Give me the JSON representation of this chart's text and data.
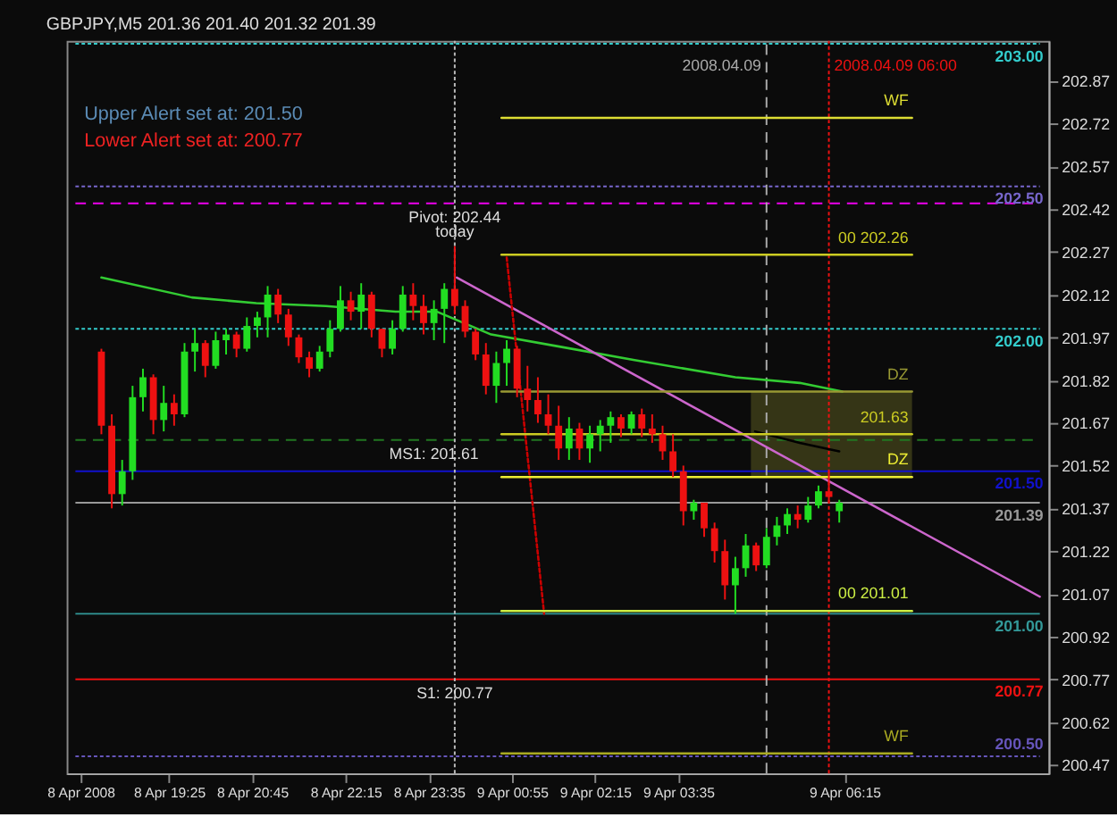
{
  "chart_data": {
    "type": "candlestick",
    "title": "GBPJPY,M5  201.36 201.40 201.32 201.39",
    "x": [
      "2008-04-08T18:20",
      "2008-04-08T18:30",
      "2008-04-08T18:40",
      "2008-04-08T18:50",
      "2008-04-08T19:00",
      "2008-04-08T19:10",
      "2008-04-08T19:20",
      "2008-04-08T19:30",
      "2008-04-08T19:40",
      "2008-04-08T19:50",
      "2008-04-08T20:00",
      "2008-04-08T20:10",
      "2008-04-08T20:20",
      "2008-04-08T20:30",
      "2008-04-08T20:40",
      "2008-04-08T20:50",
      "2008-04-08T21:00",
      "2008-04-08T21:10",
      "2008-04-08T21:20",
      "2008-04-08T21:30",
      "2008-04-08T21:40",
      "2008-04-08T21:50",
      "2008-04-08T22:00",
      "2008-04-08T22:10",
      "2008-04-08T22:20",
      "2008-04-08T22:30",
      "2008-04-08T22:40",
      "2008-04-08T22:50",
      "2008-04-08T23:00",
      "2008-04-08T23:10",
      "2008-04-08T23:20",
      "2008-04-08T23:30",
      "2008-04-08T23:40",
      "2008-04-08T23:50",
      "2008-04-09T00:00",
      "2008-04-09T00:10",
      "2008-04-09T00:20",
      "2008-04-09T00:30",
      "2008-04-09T00:40",
      "2008-04-09T00:50",
      "2008-04-09T01:00",
      "2008-04-09T01:10",
      "2008-04-09T01:20",
      "2008-04-09T01:30",
      "2008-04-09T01:40",
      "2008-04-09T01:50",
      "2008-04-09T02:00",
      "2008-04-09T02:10",
      "2008-04-09T02:20",
      "2008-04-09T02:30",
      "2008-04-09T02:40",
      "2008-04-09T02:50",
      "2008-04-09T03:00",
      "2008-04-09T03:10",
      "2008-04-09T03:20",
      "2008-04-09T03:30",
      "2008-04-09T03:40",
      "2008-04-09T03:50",
      "2008-04-09T04:00",
      "2008-04-09T04:10",
      "2008-04-09T04:20",
      "2008-04-09T04:30",
      "2008-04-09T04:40",
      "2008-04-09T04:50",
      "2008-04-09T05:00",
      "2008-04-09T05:10",
      "2008-04-09T05:20",
      "2008-04-09T05:30",
      "2008-04-09T05:40",
      "2008-04-09T05:50",
      "2008-04-09T06:00",
      "2008-04-09T06:10"
    ],
    "ohlc": [
      [
        201.92,
        201.93,
        201.63,
        201.66
      ],
      [
        201.66,
        201.7,
        201.37,
        201.42
      ],
      [
        201.42,
        201.54,
        201.38,
        201.5
      ],
      [
        201.5,
        201.8,
        201.47,
        201.76
      ],
      [
        201.76,
        201.86,
        201.71,
        201.83
      ],
      [
        201.83,
        201.84,
        201.63,
        201.68
      ],
      [
        201.68,
        201.8,
        201.64,
        201.74
      ],
      [
        201.74,
        201.77,
        201.66,
        201.7
      ],
      [
        201.7,
        201.95,
        201.69,
        201.92
      ],
      [
        201.92,
        202.0,
        201.85,
        201.95
      ],
      [
        201.95,
        201.96,
        201.83,
        201.87
      ],
      [
        201.87,
        201.99,
        201.86,
        201.96
      ],
      [
        201.96,
        202.0,
        201.91,
        201.98
      ],
      [
        201.98,
        201.99,
        201.9,
        201.93
      ],
      [
        201.93,
        202.04,
        201.92,
        202.01
      ],
      [
        202.01,
        202.06,
        201.97,
        202.04
      ],
      [
        202.04,
        202.15,
        201.97,
        202.12
      ],
      [
        202.12,
        202.14,
        202.02,
        202.05
      ],
      [
        202.05,
        202.07,
        201.94,
        201.97
      ],
      [
        201.97,
        201.98,
        201.88,
        201.9
      ],
      [
        201.9,
        201.92,
        201.83,
        201.86
      ],
      [
        201.86,
        201.94,
        201.85,
        201.92
      ],
      [
        201.92,
        202.03,
        201.9,
        202.0
      ],
      [
        202.0,
        202.15,
        201.99,
        202.1
      ],
      [
        202.1,
        202.13,
        202.03,
        202.06
      ],
      [
        202.06,
        202.16,
        202.0,
        202.12
      ],
      [
        202.12,
        202.13,
        201.97,
        202.0
      ],
      [
        202.0,
        202.0,
        201.9,
        201.93
      ],
      [
        201.93,
        202.03,
        201.91,
        202.0
      ],
      [
        202.0,
        202.15,
        201.99,
        202.12
      ],
      [
        202.12,
        202.16,
        202.03,
        202.08
      ],
      [
        202.08,
        202.12,
        201.98,
        202.02
      ],
      [
        202.02,
        202.1,
        201.96,
        202.07
      ],
      [
        202.07,
        202.16,
        201.95,
        202.14
      ],
      [
        202.14,
        202.29,
        202.05,
        202.08
      ],
      [
        202.08,
        202.1,
        201.97,
        201.99
      ],
      [
        201.99,
        202.0,
        201.89,
        201.91
      ],
      [
        201.91,
        201.95,
        201.77,
        201.8
      ],
      [
        201.8,
        201.92,
        201.74,
        201.88
      ],
      [
        201.88,
        201.96,
        201.8,
        201.93
      ],
      [
        201.93,
        201.94,
        201.76,
        201.79
      ],
      [
        201.79,
        201.87,
        201.71,
        201.75
      ],
      [
        201.75,
        201.83,
        201.67,
        201.7
      ],
      [
        201.7,
        201.77,
        201.63,
        201.66
      ],
      [
        201.66,
        201.73,
        201.54,
        201.58
      ],
      [
        201.58,
        201.69,
        201.54,
        201.65
      ],
      [
        201.65,
        201.67,
        201.54,
        201.58
      ],
      [
        201.58,
        201.66,
        201.53,
        201.63
      ],
      [
        201.63,
        201.68,
        201.57,
        201.66
      ],
      [
        201.66,
        201.71,
        201.6,
        201.69
      ],
      [
        201.69,
        201.7,
        201.62,
        201.65
      ],
      [
        201.65,
        201.71,
        201.63,
        201.7
      ],
      [
        201.7,
        201.72,
        201.62,
        201.65
      ],
      [
        201.65,
        201.7,
        201.6,
        201.63
      ],
      [
        201.63,
        201.66,
        201.54,
        201.57
      ],
      [
        201.57,
        201.63,
        201.48,
        201.5
      ],
      [
        201.5,
        201.52,
        201.31,
        201.36
      ],
      [
        201.36,
        201.4,
        201.33,
        201.39
      ],
      [
        201.39,
        201.39,
        201.27,
        201.3
      ],
      [
        201.3,
        201.32,
        201.18,
        201.22
      ],
      [
        201.22,
        201.26,
        201.05,
        201.1
      ],
      [
        201.1,
        201.2,
        201.0,
        201.16
      ],
      [
        201.16,
        201.28,
        201.13,
        201.24
      ],
      [
        201.24,
        201.25,
        201.15,
        201.17
      ],
      [
        201.17,
        201.3,
        201.16,
        201.27
      ],
      [
        201.27,
        201.34,
        201.24,
        201.31
      ],
      [
        201.31,
        201.37,
        201.28,
        201.35
      ],
      [
        201.35,
        201.38,
        201.3,
        201.33
      ],
      [
        201.33,
        201.41,
        201.32,
        201.38
      ],
      [
        201.38,
        201.45,
        201.37,
        201.43
      ],
      [
        201.43,
        201.5,
        201.39,
        201.41
      ],
      [
        201.36,
        201.4,
        201.32,
        201.39
      ]
    ],
    "colors": [
      "#ee1111",
      "#ee1111",
      "#22dd22",
      "#22dd22",
      "#22dd22",
      "#ee1111",
      "#22dd22",
      "#ee1111",
      "#22dd22",
      "#22dd22",
      "#ee1111",
      "#22dd22",
      "#22dd22",
      "#ee1111",
      "#22dd22",
      "#22dd22",
      "#22dd22",
      "#ee1111",
      "#ee1111",
      "#ee1111",
      "#ee1111",
      "#22dd22",
      "#22dd22",
      "#22dd22",
      "#ee1111",
      "#22dd22",
      "#ee1111",
      "#ee1111",
      "#22dd22",
      "#22dd22",
      "#ee1111",
      "#ee1111",
      "#22dd22",
      "#22dd22",
      "#ee1111",
      "#ee1111",
      "#ee1111",
      "#ee1111",
      "#22dd22",
      "#22dd22",
      "#ee1111",
      "#ee1111",
      "#ee1111",
      "#ee1111",
      "#ee1111",
      "#22dd22",
      "#ee1111",
      "#22dd22",
      "#22dd22",
      "#22dd22",
      "#ee1111",
      "#22dd22",
      "#ee1111",
      "#ee1111",
      "#ee1111",
      "#ee1111",
      "#ee1111",
      "#22dd22",
      "#ee1111",
      "#ee1111",
      "#ee1111",
      "#22dd22",
      "#22dd22",
      "#ee1111",
      "#22dd22",
      "#22dd22",
      "#22dd22",
      "#ee1111",
      "#22dd22",
      "#22dd22",
      "#ee1111",
      "#22dd22"
    ],
    "series": [
      {
        "type": "line",
        "color": "#33cc33",
        "x": [
          "2008-04-08T18:20",
          "2008-04-08T19:47",
          "2008-04-08T20:49",
          "2008-04-08T21:56",
          "2008-04-08T23:03",
          "2008-04-08T23:43",
          "2008-04-09T00:35",
          "2008-04-09T01:37",
          "2008-04-09T02:53",
          "2008-04-09T04:30",
          "2008-04-09T05:32",
          "2008-04-09T06:13"
        ],
        "values": [
          202.18,
          202.11,
          202.09,
          202.08,
          202.06,
          202.06,
          201.98,
          201.94,
          201.89,
          201.83,
          201.81,
          201.78
        ]
      },
      {
        "type": "line",
        "color": "#cc66cc",
        "x": [
          "2008-04-09T00:02",
          "2008-04-09T09:23"
        ],
        "values": [
          202.18,
          201.06
        ]
      },
      {
        "type": "line",
        "color": "#cc0000",
        "line_style": "dotted",
        "x": [
          "2008-04-09T00:50",
          "2008-04-09T01:26"
        ],
        "values": [
          202.25,
          201.0
        ]
      },
      {
        "type": "line",
        "color": "#000000",
        "x": [
          "2008-04-09T04:49",
          "2008-04-09T05:32",
          "2008-04-09T06:10"
        ],
        "values": [
          201.64,
          201.6,
          201.57
        ]
      },
      {
        "type": "line",
        "name": "WF",
        "color": "#dddd33",
        "x": [
          "2008-04-09T00:45",
          "2008-04-09T07:20"
        ],
        "values": [
          202.74,
          202.74
        ]
      },
      {
        "type": "line",
        "name": "00  202.26",
        "color": "#cccc22",
        "x": [
          "2008-04-09T00:45",
          "2008-04-09T07:20"
        ],
        "values": [
          202.26,
          202.26
        ]
      },
      {
        "type": "line",
        "name": "DZ",
        "color": "#999933",
        "x": [
          "2008-04-09T00:45",
          "2008-04-09T04:45",
          "2008-04-09T07:20"
        ],
        "values": [
          201.78,
          201.78,
          201.78
        ],
        "lower": [
          null,
          201.48,
          201.48
        ],
        "upper": [
          null,
          201.78,
          201.78
        ]
      },
      {
        "type": "line",
        "name": "201.63",
        "color": "#cccc22",
        "x": [
          "2008-04-09T00:45",
          "2008-04-09T07:20"
        ],
        "values": [
          201.63,
          201.63
        ]
      },
      {
        "type": "line",
        "name": "DZ",
        "color": "#eeee33",
        "x": [
          "2008-04-09T00:45",
          "2008-04-09T07:20"
        ],
        "values": [
          201.48,
          201.48
        ]
      },
      {
        "type": "line",
        "name": "00  201.01",
        "color": "#ccee44",
        "x": [
          "2008-04-09T00:45",
          "2008-04-09T07:20"
        ],
        "values": [
          201.01,
          201.01
        ]
      },
      {
        "type": "line",
        "name": "WF",
        "color": "#aaaa22",
        "x": [
          "2008-04-09T00:45",
          "2008-04-09T07:20"
        ],
        "values": [
          200.51,
          200.51
        ]
      }
    ],
    "ref_lines": [
      {
        "axis": "y",
        "value": 203.0,
        "label": "203.00",
        "color": "#33cccc",
        "line_style": "dotted"
      },
      {
        "axis": "y",
        "value": 202.5,
        "label": "202.50",
        "color": "#7766cc",
        "line_style": "dotted"
      },
      {
        "axis": "y",
        "value": 202.44,
        "color": "#ee00ee",
        "line_style": "dashed"
      },
      {
        "axis": "y",
        "value": 202.0,
        "label": "202.00",
        "color": "#33cccc",
        "line_style": "dotted"
      },
      {
        "axis": "y",
        "value": 201.61,
        "color": "#227722",
        "line_style": "dashed"
      },
      {
        "axis": "y",
        "value": 201.5,
        "label": "201.50",
        "color": "#1111cc",
        "line_style": "solid"
      },
      {
        "axis": "y",
        "value": 201.39,
        "label": "201.39",
        "color": "#999999",
        "line_style": "solid"
      },
      {
        "axis": "y",
        "value": 201.0,
        "label": "201.00",
        "color": "#339999",
        "line_style": "solid"
      },
      {
        "axis": "y",
        "value": 200.77,
        "label": "200.77",
        "color": "#ee1111",
        "line_style": "solid"
      },
      {
        "axis": "y",
        "value": 200.5,
        "label": "200.50",
        "color": "#6655bb",
        "line_style": "dotted"
      },
      {
        "axis": "x",
        "value": "2008-04-09T00:00",
        "color": "#bbbbbb",
        "line_style": "dotted"
      },
      {
        "axis": "x",
        "value": "2008-04-09T05:00",
        "label": "2008.04.09",
        "color": "#aaaaaa",
        "line_style": "dashed"
      },
      {
        "axis": "x",
        "value": "2008-04-09T06:00",
        "label": "2008.04.09 06:00",
        "color": "#ee1111",
        "line_style": "dotted"
      }
    ],
    "annotations": [
      "Upper Alert set at: 201.50",
      "Lower Alert set at: 200.77",
      {
        "text": "Pivot: 202.44",
        "x": "2008-04-09T00:00",
        "y": 202.44
      },
      {
        "text": "today",
        "x": "2008-04-09T00:00",
        "y": 202.39
      },
      {
        "text": "MS1: 201.61",
        "x": "2008-04-08T23:40",
        "y": 201.61
      },
      {
        "text": "S1: 200.77",
        "x": "2008-04-09T00:00",
        "y": 200.77
      }
    ],
    "xlim": [
      "2008-04-08T17:55",
      "2008-04-09T09:23"
    ],
    "xticks": [
      {
        "value": "2008-04-08T18:00",
        "label": "8 Apr 2008"
      },
      {
        "value": "2008-04-08T19:25",
        "label": "8 Apr 19:25"
      },
      {
        "value": "2008-04-08T20:45",
        "label": "8 Apr 20:45"
      },
      {
        "value": "2008-04-08T22:15",
        "label": "8 Apr 22:15"
      },
      {
        "value": "2008-04-08T23:35",
        "label": "8 Apr 23:35"
      },
      {
        "value": "2008-04-09T00:55",
        "label": "9 Apr 00:55"
      },
      {
        "value": "2008-04-09T02:15",
        "label": "9 Apr 02:15"
      },
      {
        "value": "2008-04-09T03:35",
        "label": "9 Apr 03:35"
      },
      {
        "value": "2008-04-09T06:15",
        "label": "9 Apr 06:15"
      }
    ],
    "ylim": [
      200.44,
      203.01
    ],
    "yticks": [
      200.47,
      200.62,
      200.77,
      200.92,
      201.07,
      201.22,
      201.37,
      201.52,
      201.67,
      201.82,
      201.97,
      202.12,
      202.27,
      202.42,
      202.57,
      202.72,
      202.87
    ]
  }
}
